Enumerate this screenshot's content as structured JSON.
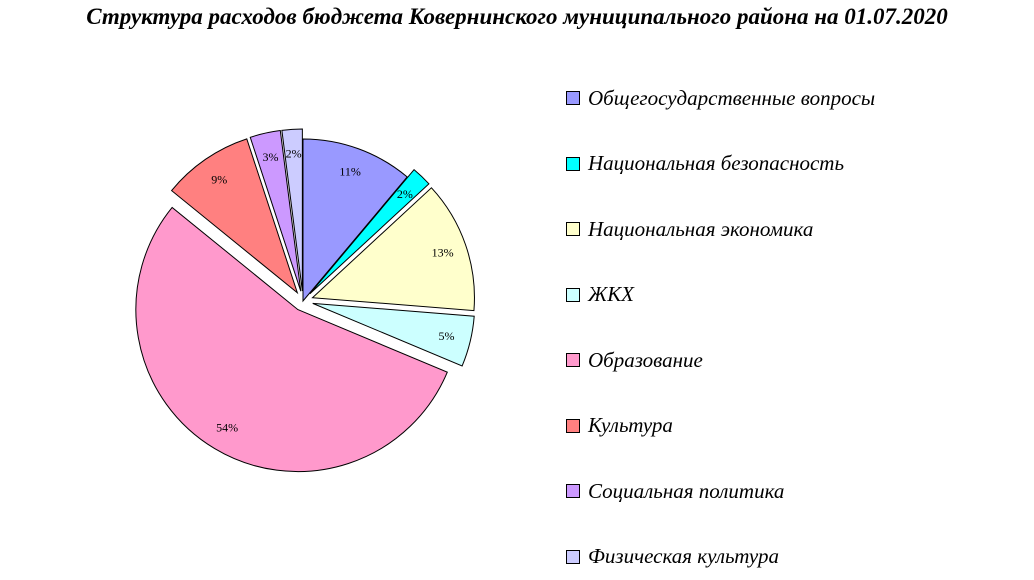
{
  "chart_data": {
    "type": "pie",
    "title": "Структура расходов бюджета Ковернинского муниципального района на 01.07.2020",
    "legend_position": "right",
    "slices": [
      {
        "name": "Общегосударственные вопросы",
        "value": 11,
        "label": "11%",
        "color": "#9999FF",
        "exploded": false
      },
      {
        "name": "Национальная безопасность",
        "value": 2,
        "label": "2%",
        "color": "#00FFFF",
        "exploded": true
      },
      {
        "name": "Национальная экономика",
        "value": 13,
        "label": "13%",
        "color": "#FFFFCC",
        "exploded": true
      },
      {
        "name": "ЖКХ",
        "value": 5,
        "label": "5%",
        "color": "#CCFFFF",
        "exploded": true
      },
      {
        "name": "Образование",
        "value": 54,
        "label": "54%",
        "color": "#FF99CC",
        "exploded": true
      },
      {
        "name": "Культура",
        "value": 9,
        "label": "9%",
        "color": "#FF8080",
        "exploded": true
      },
      {
        "name": "Социальная политика",
        "value": 3,
        "label": "3%",
        "color": "#CC99FF",
        "exploded": true
      },
      {
        "name": "Физическая культура",
        "value": 2,
        "label": "2%",
        "color": "#CCCCFF",
        "exploded": true
      }
    ]
  }
}
